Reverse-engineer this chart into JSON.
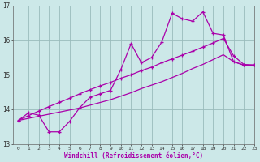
{
  "xlabel": "Windchill (Refroidissement éolien,°C)",
  "xlim": [
    -0.5,
    23
  ],
  "ylim": [
    13,
    17
  ],
  "yticks": [
    13,
    14,
    15,
    16,
    17
  ],
  "xticks": [
    0,
    1,
    2,
    3,
    4,
    5,
    6,
    7,
    8,
    9,
    10,
    11,
    12,
    13,
    14,
    15,
    16,
    17,
    18,
    19,
    20,
    21,
    22,
    23
  ],
  "bg_color": "#cce8e8",
  "line_color": "#aa00aa",
  "grid_color": "#99bbbb",
  "line1_x": [
    0,
    1,
    2,
    3,
    4,
    5,
    6,
    7,
    8,
    9,
    10,
    11,
    12,
    13,
    14,
    15,
    16,
    17,
    18,
    19,
    20,
    21,
    22,
    23
  ],
  "line1_y": [
    13.68,
    13.9,
    13.83,
    13.35,
    13.35,
    13.65,
    14.05,
    14.35,
    14.45,
    14.55,
    15.15,
    15.9,
    15.35,
    15.5,
    15.95,
    16.78,
    16.62,
    16.55,
    16.82,
    16.2,
    16.15,
    15.38,
    15.28,
    15.28
  ],
  "line2_x": [
    0,
    1,
    2,
    3,
    4,
    5,
    6,
    7,
    8,
    9,
    10,
    11,
    12,
    13,
    14,
    15,
    16,
    17,
    18,
    19,
    20,
    21,
    22,
    23
  ],
  "line2_y": [
    13.68,
    13.82,
    13.95,
    14.08,
    14.2,
    14.32,
    14.45,
    14.57,
    14.68,
    14.78,
    14.9,
    15.0,
    15.12,
    15.22,
    15.35,
    15.46,
    15.57,
    15.68,
    15.8,
    15.92,
    16.05,
    15.55,
    15.3,
    15.28
  ],
  "line3_x": [
    0,
    1,
    2,
    3,
    4,
    5,
    6,
    7,
    8,
    9,
    10,
    11,
    12,
    13,
    14,
    15,
    16,
    17,
    18,
    19,
    20,
    21,
    22,
    23
  ],
  "line3_y": [
    13.68,
    13.74,
    13.8,
    13.86,
    13.92,
    13.98,
    14.04,
    14.12,
    14.2,
    14.28,
    14.38,
    14.48,
    14.6,
    14.7,
    14.8,
    14.92,
    15.04,
    15.18,
    15.3,
    15.44,
    15.58,
    15.38,
    15.28,
    15.28
  ]
}
